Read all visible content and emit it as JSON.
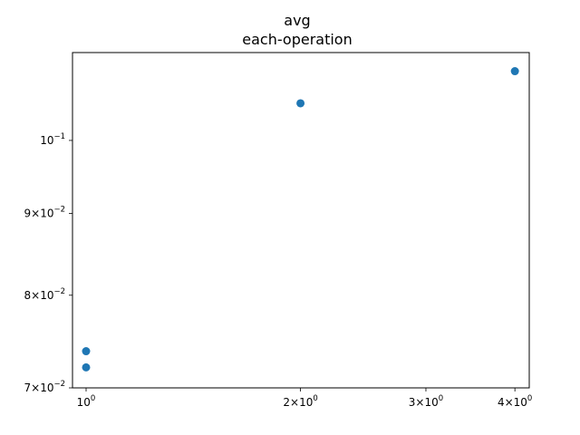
{
  "chart_data": {
    "type": "scatter",
    "title": "avg",
    "subtitle": "each-operation",
    "xlabel": "",
    "ylabel": "",
    "xscale": "log",
    "yscale": "log",
    "xlim": [
      0.957,
      4.19
    ],
    "ylim": [
      0.07,
      0.1135
    ],
    "x_ticks": [
      {
        "value": 1,
        "label": "10",
        "exp": "0"
      },
      {
        "value": 2,
        "label": "2×10",
        "exp": "0"
      },
      {
        "value": 3,
        "label": "3×10",
        "exp": "0"
      },
      {
        "value": 4,
        "label": "4×10",
        "exp": "0"
      }
    ],
    "y_ticks": [
      {
        "value": 0.07,
        "label": "7×10",
        "exp": "−2"
      },
      {
        "value": 0.08,
        "label": "8×10",
        "exp": "−2"
      },
      {
        "value": 0.09,
        "label": "9×10",
        "exp": "−2"
      },
      {
        "value": 0.1,
        "label": "10",
        "exp": "−1"
      }
    ],
    "grid": false,
    "marker_color": "#1f77b4",
    "points": [
      {
        "x": 1,
        "y": 0.0721
      },
      {
        "x": 1,
        "y": 0.0738
      },
      {
        "x": 2,
        "y": 0.1055
      },
      {
        "x": 4,
        "y": 0.1105
      }
    ]
  }
}
